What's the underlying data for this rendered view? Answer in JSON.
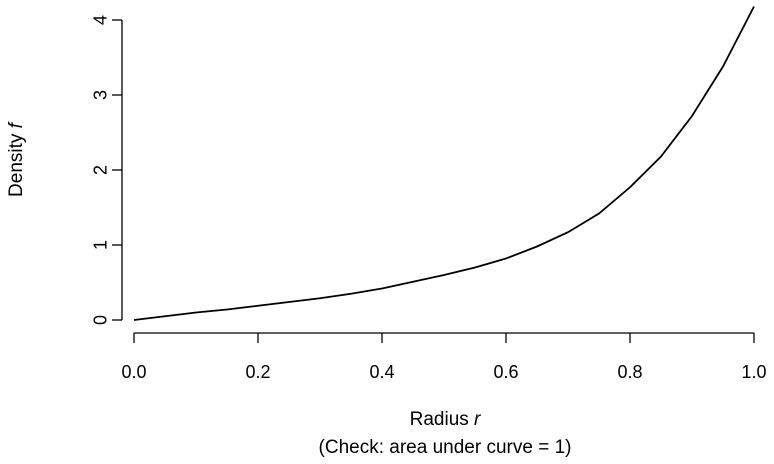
{
  "chart_data": {
    "type": "line",
    "title": "",
    "xlabel": "Radius ",
    "xlabel_var": "r",
    "ylabel": "Density ",
    "ylabel_var": "f",
    "caption": "(Check: area under curve = 1)",
    "xlim": [
      0,
      1
    ],
    "ylim": [
      0,
      4
    ],
    "xticks": [
      0.0,
      0.2,
      0.4,
      0.6,
      0.8,
      1.0
    ],
    "xtick_labels": [
      "0.0",
      "0.2",
      "0.4",
      "0.6",
      "0.8",
      "1.0"
    ],
    "yticks": [
      0,
      1,
      2,
      3,
      4
    ],
    "ytick_labels": [
      "0",
      "1",
      "2",
      "3",
      "4"
    ],
    "grid": false,
    "legend": "none",
    "series": [
      {
        "x": [
          0.0,
          0.05,
          0.1,
          0.15,
          0.2,
          0.25,
          0.3,
          0.35,
          0.4,
          0.45,
          0.5,
          0.55,
          0.6,
          0.65,
          0.7,
          0.75,
          0.8,
          0.85,
          0.9,
          0.95,
          1.0
        ],
        "y": [
          0.0,
          0.05,
          0.1,
          0.14,
          0.19,
          0.24,
          0.29,
          0.35,
          0.42,
          0.51,
          0.6,
          0.7,
          0.82,
          0.98,
          1.17,
          1.42,
          1.77,
          2.18,
          2.72,
          3.38,
          4.18
        ]
      }
    ]
  }
}
